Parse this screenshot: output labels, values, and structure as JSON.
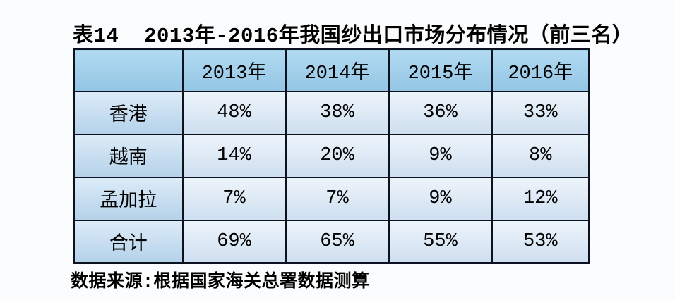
{
  "table": {
    "title": "表14  2013年-2016年我国纱出口市场分布情况（前三名）",
    "columns": [
      "",
      "2013年",
      "2014年",
      "2015年",
      "2016年"
    ],
    "rows": [
      {
        "label": "香港",
        "values": [
          "48%",
          "38%",
          "36%",
          "33%"
        ]
      },
      {
        "label": "越南",
        "values": [
          "14%",
          "20%",
          "9%",
          "8%"
        ]
      },
      {
        "label": "孟加拉",
        "values": [
          "7%",
          "7%",
          "9%",
          "12%"
        ]
      },
      {
        "label": "合计",
        "values": [
          "69%",
          "65%",
          "55%",
          "53%"
        ]
      }
    ],
    "source_note": "数据来源:根据国家海关总署数据测算",
    "colors": {
      "header_bg": "#9ed1ef",
      "row_label_bg": "#c6dff3",
      "cell_bg": "#ddeaf7",
      "border": "#0c1220",
      "text": "#000000",
      "page_bg": "#fbfcfd"
    }
  },
  "chart_data": {
    "type": "table",
    "title": "表14 2013年-2016年我国纱出口市场分布情况（前三名）",
    "columns": [
      "",
      "2013年",
      "2014年",
      "2015年",
      "2016年"
    ],
    "rows": [
      [
        "香港",
        "48%",
        "38%",
        "36%",
        "33%"
      ],
      [
        "越南",
        "14%",
        "20%",
        "9%",
        "8%"
      ],
      [
        "孟加拉",
        "7%",
        "7%",
        "9%",
        "12%"
      ],
      [
        "合计",
        "69%",
        "65%",
        "55%",
        "53%"
      ]
    ],
    "source": "数据来源:根据国家海关总署数据测算"
  }
}
